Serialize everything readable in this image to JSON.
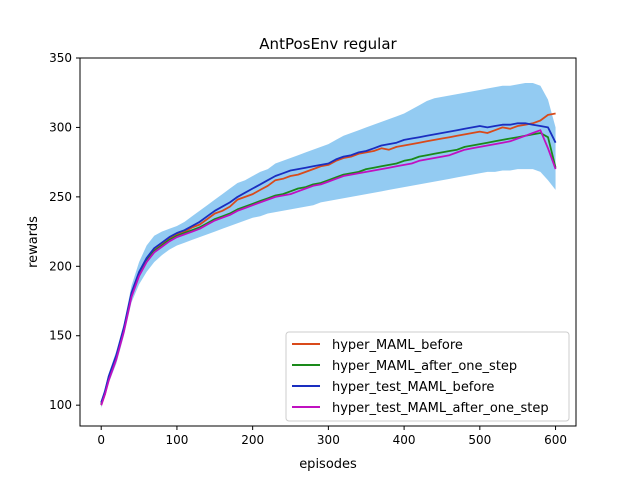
{
  "chart_data": {
    "type": "line",
    "title": "AntPosEnv regular",
    "xlabel": "episodes",
    "ylabel": "rewards",
    "xlim": [
      -28,
      627
    ],
    "ylim": [
      85,
      350
    ],
    "xticks": [
      0,
      100,
      200,
      300,
      400,
      500,
      600
    ],
    "yticks": [
      100,
      150,
      200,
      250,
      300,
      350
    ],
    "grid": false,
    "legend_position": "lower-right",
    "series": [
      {
        "name": "hyper_MAML_before",
        "color": "#d94a1a",
        "x": [
          0,
          5,
          10,
          20,
          30,
          40,
          50,
          60,
          70,
          80,
          90,
          100,
          110,
          120,
          130,
          140,
          150,
          160,
          170,
          180,
          190,
          200,
          210,
          220,
          230,
          240,
          250,
          260,
          270,
          280,
          290,
          300,
          310,
          320,
          330,
          340,
          350,
          360,
          370,
          380,
          390,
          400,
          410,
          420,
          430,
          440,
          450,
          460,
          470,
          480,
          490,
          500,
          510,
          520,
          530,
          540,
          550,
          560,
          570,
          580,
          590,
          600
        ],
        "y": [
          100,
          108,
          120,
          135,
          155,
          180,
          195,
          205,
          212,
          216,
          220,
          223,
          225,
          228,
          230,
          234,
          238,
          240,
          243,
          248,
          250,
          252,
          255,
          258,
          262,
          263,
          265,
          266,
          268,
          270,
          272,
          273,
          276,
          278,
          279,
          281,
          282,
          283,
          285,
          284,
          286,
          287,
          288,
          289,
          290,
          291,
          292,
          293,
          294,
          295,
          296,
          297,
          296,
          298,
          300,
          299,
          301,
          302,
          303,
          305,
          309,
          310
        ]
      },
      {
        "name": "hyper_MAML_after_one_step",
        "color": "#1a8a1a",
        "x": [
          0,
          5,
          10,
          20,
          30,
          40,
          50,
          60,
          70,
          80,
          90,
          100,
          110,
          120,
          130,
          140,
          150,
          160,
          170,
          180,
          190,
          200,
          210,
          220,
          230,
          240,
          250,
          260,
          270,
          280,
          290,
          300,
          310,
          320,
          330,
          340,
          350,
          360,
          370,
          380,
          390,
          400,
          410,
          420,
          430,
          440,
          450,
          460,
          470,
          480,
          490,
          500,
          510,
          520,
          530,
          540,
          550,
          560,
          570,
          580,
          590,
          600
        ],
        "y": [
          101,
          109,
          119,
          134,
          154,
          179,
          194,
          204,
          211,
          215,
          219,
          222,
          224,
          226,
          228,
          231,
          234,
          236,
          238,
          241,
          243,
          245,
          247,
          249,
          251,
          252,
          254,
          256,
          257,
          259,
          260,
          262,
          264,
          266,
          267,
          268,
          270,
          271,
          272,
          273,
          274,
          276,
          277,
          279,
          280,
          281,
          282,
          283,
          284,
          286,
          287,
          288,
          289,
          290,
          291,
          292,
          293,
          294,
          295,
          296,
          293,
          271
        ]
      },
      {
        "name": "hyper_test_MAML_before",
        "color": "#1a2ec0",
        "x": [
          0,
          5,
          10,
          20,
          30,
          40,
          50,
          60,
          70,
          80,
          90,
          100,
          110,
          120,
          130,
          140,
          150,
          160,
          170,
          180,
          190,
          200,
          210,
          220,
          230,
          240,
          250,
          260,
          270,
          280,
          290,
          300,
          310,
          320,
          330,
          340,
          350,
          360,
          370,
          380,
          390,
          400,
          410,
          420,
          430,
          440,
          450,
          460,
          470,
          480,
          490,
          500,
          510,
          520,
          530,
          540,
          550,
          560,
          570,
          580,
          590,
          600
        ],
        "y": [
          102,
          110,
          121,
          136,
          156,
          181,
          196,
          206,
          213,
          217,
          221,
          224,
          226,
          229,
          232,
          236,
          240,
          243,
          246,
          250,
          253,
          256,
          259,
          262,
          265,
          267,
          269,
          270,
          271,
          272,
          273,
          274,
          277,
          279,
          280,
          282,
          283,
          285,
          287,
          288,
          289,
          291,
          292,
          293,
          294,
          295,
          296,
          297,
          298,
          299,
          300,
          301,
          300,
          301,
          302,
          302,
          303,
          303,
          302,
          301,
          300,
          289
        ]
      },
      {
        "name": "hyper_test_MAML_after_one_step",
        "color": "#c010c0",
        "x": [
          0,
          5,
          10,
          20,
          30,
          40,
          50,
          60,
          70,
          80,
          90,
          100,
          110,
          120,
          130,
          140,
          150,
          160,
          170,
          180,
          190,
          200,
          210,
          220,
          230,
          240,
          250,
          260,
          270,
          280,
          290,
          300,
          310,
          320,
          330,
          340,
          350,
          360,
          370,
          380,
          390,
          400,
          410,
          420,
          430,
          440,
          450,
          460,
          470,
          480,
          490,
          500,
          510,
          520,
          530,
          540,
          550,
          560,
          570,
          580,
          590,
          600
        ],
        "y": [
          100,
          108,
          118,
          133,
          153,
          178,
          193,
          203,
          210,
          214,
          218,
          221,
          223,
          225,
          227,
          230,
          233,
          235,
          237,
          240,
          242,
          244,
          246,
          248,
          250,
          251,
          252,
          254,
          256,
          258,
          259,
          261,
          263,
          265,
          266,
          267,
          268,
          269,
          270,
          271,
          272,
          273,
          274,
          276,
          277,
          278,
          279,
          280,
          282,
          284,
          285,
          286,
          287,
          288,
          289,
          290,
          292,
          294,
          296,
          298,
          285,
          270
        ]
      }
    ],
    "variance_band": {
      "color": "#3aa0e8",
      "x": [
        0,
        10,
        20,
        30,
        40,
        50,
        60,
        70,
        80,
        90,
        100,
        110,
        120,
        130,
        140,
        150,
        160,
        170,
        180,
        190,
        200,
        210,
        220,
        230,
        240,
        250,
        260,
        270,
        280,
        290,
        300,
        310,
        320,
        330,
        340,
        350,
        360,
        370,
        380,
        390,
        400,
        410,
        420,
        430,
        440,
        450,
        460,
        470,
        480,
        490,
        500,
        510,
        520,
        530,
        540,
        550,
        560,
        570,
        580,
        590,
        600
      ],
      "upper": [
        103,
        123,
        139,
        159,
        186,
        203,
        215,
        222,
        225,
        227,
        229,
        232,
        236,
        240,
        244,
        248,
        252,
        256,
        260,
        262,
        265,
        268,
        270,
        274,
        276,
        278,
        280,
        282,
        284,
        286,
        288,
        291,
        294,
        296,
        298,
        300,
        302,
        304,
        306,
        308,
        310,
        313,
        316,
        319,
        321,
        322,
        323,
        324,
        325,
        326,
        327,
        328,
        329,
        330,
        330,
        331,
        332,
        332,
        330,
        320,
        300
      ],
      "lower": [
        98,
        116,
        130,
        150,
        174,
        187,
        196,
        203,
        208,
        212,
        215,
        217,
        219,
        221,
        223,
        225,
        227,
        229,
        231,
        233,
        235,
        236,
        238,
        239,
        240,
        241,
        242,
        243,
        244,
        246,
        247,
        248,
        249,
        250,
        251,
        252,
        253,
        254,
        255,
        256,
        257,
        258,
        259,
        260,
        261,
        262,
        263,
        264,
        265,
        266,
        267,
        268,
        268,
        269,
        269,
        270,
        270,
        270,
        268,
        262,
        255
      ]
    }
  }
}
